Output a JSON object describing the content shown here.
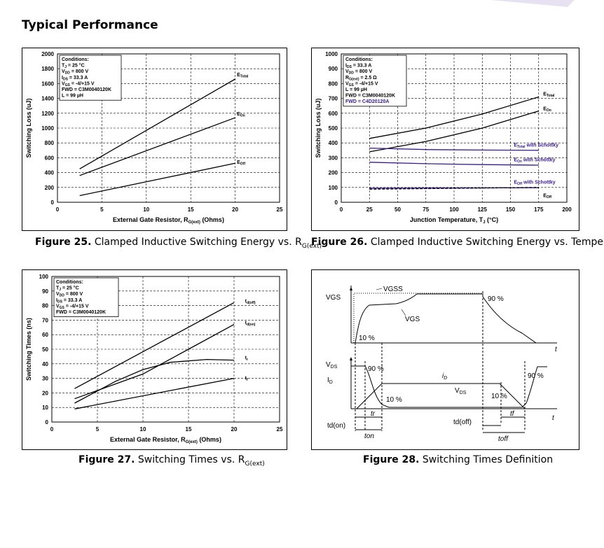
{
  "page": {
    "section_title": "Typical Performance"
  },
  "figures": {
    "f25": {
      "num": "Figure 25.",
      "caption": "Clamped Inductive Switching Energy vs. R",
      "caption_sub": "G(ext)"
    },
    "f26": {
      "num": "Figure 26.",
      "caption": "Clamped Inductive Switching Energy vs. Temperature"
    },
    "f27": {
      "num": "Figure 27.",
      "caption": "Switching Times vs. R",
      "caption_sub": "G(ext)"
    },
    "f28": {
      "num": "Figure 28.",
      "caption": "Switching Times Definition"
    }
  },
  "chart_data": [
    {
      "id": "f25",
      "type": "line",
      "xlabel": "External Gate Resistor, R",
      "xlabel_sub": "G(ext)",
      "xlabel_tail": " (Ohms)",
      "ylabel": "Switching Loss (uJ)",
      "xlim": [
        0,
        25
      ],
      "ylim": [
        0,
        2000
      ],
      "xticks": [
        0,
        5,
        10,
        15,
        20,
        25
      ],
      "yticks": [
        0,
        200,
        400,
        600,
        800,
        1000,
        1200,
        1400,
        1600,
        1800,
        2000
      ],
      "grid": true,
      "conditions": [
        "Conditions:",
        "T_J = 25 °C",
        "V_DD = 800 V",
        "I_DS = 33.3 A",
        "V_GS = -4/+15 V",
        "FWD = C3M0040120K",
        "L = 99 µH"
      ],
      "series": [
        {
          "name": "E_Total",
          "color": "#000000",
          "points": [
            [
              2.5,
              450
            ],
            [
              20,
              1660
            ]
          ]
        },
        {
          "name": "E_On",
          "color": "#000000",
          "points": [
            [
              2.5,
              360
            ],
            [
              20,
              1140
            ]
          ]
        },
        {
          "name": "E_Off",
          "color": "#000000",
          "points": [
            [
              2.5,
              90
            ],
            [
              20,
              525
            ]
          ]
        }
      ]
    },
    {
      "id": "f26",
      "type": "line",
      "xlabel": "Junction Temperature, T",
      "xlabel_sub": "J",
      "xlabel_tail": " (°C)",
      "ylabel": "Switching Loss (uJ)",
      "xlim": [
        0,
        200
      ],
      "ylim": [
        0,
        1000
      ],
      "xticks": [
        0,
        25,
        50,
        75,
        100,
        125,
        150,
        175,
        200
      ],
      "yticks": [
        0,
        100,
        200,
        300,
        400,
        500,
        600,
        700,
        800,
        900,
        1000
      ],
      "grid": true,
      "conditions": [
        "Conditions:",
        "I_DS = 33.3 A",
        "V_DD = 800 V",
        "R_G(ext) = 2.5 Ω",
        "V_GS = -4/+15 V",
        "L = 99 µH",
        "FWD = C3M0040120K",
        "FWD = C4D20120A"
      ],
      "conditions_colors": [
        "#000000",
        "#000000",
        "#000000",
        "#000000",
        "#000000",
        "#000000",
        "#000000",
        "#3a1a8c"
      ],
      "series": [
        {
          "name": "E_Total",
          "color": "#000000",
          "points": [
            [
              25,
              430
            ],
            [
              75,
              500
            ],
            [
              125,
              595
            ],
            [
              175,
              710
            ]
          ]
        },
        {
          "name": "E_On",
          "color": "#000000",
          "points": [
            [
              25,
              340
            ],
            [
              75,
              410
            ],
            [
              125,
              500
            ],
            [
              175,
              615
            ]
          ]
        },
        {
          "name": "E_Total with Schottky",
          "color": "#3a1a8c",
          "points": [
            [
              25,
              365
            ],
            [
              75,
              355
            ],
            [
              125,
              352
            ],
            [
              175,
              350
            ]
          ]
        },
        {
          "name": "E_On with Schottky",
          "color": "#3a1a8c",
          "points": [
            [
              25,
              270
            ],
            [
              75,
              260
            ],
            [
              125,
              254
            ],
            [
              175,
              250
            ]
          ]
        },
        {
          "name": "E_Off with Schottky",
          "color": "#3a1a8c",
          "points": [
            [
              25,
              95
            ],
            [
              175,
              98
            ]
          ]
        },
        {
          "name": "E_Off",
          "color": "#000000",
          "dashed": true,
          "points": [
            [
              25,
              88
            ],
            [
              175,
              100
            ]
          ]
        }
      ]
    },
    {
      "id": "f27",
      "type": "line",
      "xlabel": "External Gate Resistor, R",
      "xlabel_sub": "G(ext)",
      "xlabel_tail": " (Ohms)",
      "ylabel": "Switching Times (ns)",
      "xlim": [
        0,
        25
      ],
      "ylim": [
        0,
        100
      ],
      "xticks": [
        0,
        5,
        10,
        15,
        20,
        25
      ],
      "yticks": [
        0,
        10,
        20,
        30,
        40,
        50,
        60,
        70,
        80,
        90,
        100
      ],
      "grid": true,
      "conditions": [
        "Conditions:",
        "T_J = 25 °C",
        "V_DD = 800 V",
        "I_DS = 33.3 A",
        "V_GS = -4/+15 V",
        "FWD = C3M0040120K"
      ],
      "series": [
        {
          "name": "t_d(off)",
          "color": "#000000",
          "points": [
            [
              2.5,
              23
            ],
            [
              20,
              82
            ]
          ]
        },
        {
          "name": "t_d(on)",
          "color": "#000000",
          "points": [
            [
              2.5,
              16
            ],
            [
              10,
              33
            ],
            [
              15,
              50
            ],
            [
              20,
              67
            ]
          ]
        },
        {
          "name": "t_r",
          "color": "#000000",
          "points": [
            [
              2.5,
              13
            ],
            [
              7,
              28
            ],
            [
              10,
              36
            ],
            [
              13,
              41
            ],
            [
              17,
              43
            ],
            [
              20,
              42.5
            ]
          ]
        },
        {
          "name": "t_f",
          "color": "#000000",
          "points": [
            [
              2.5,
              9
            ],
            [
              20,
              30
            ]
          ]
        }
      ]
    }
  ],
  "f28": {
    "labels": {
      "vgs_axis": "VGS",
      "vgs_top": "VGSS",
      "vgs_curve": "VGS",
      "pct90_top": "90 %",
      "pct10_top": "10 %",
      "vds_axis_v": "V",
      "vds_axis_sub": "DS",
      "id_axis_i": "I",
      "id_axis_sub": "D",
      "pct90_left": "90 %",
      "pct10_mid": "10 %",
      "id_curve_i": "i",
      "id_curve_sub": "D",
      "vds_curve_v": "V",
      "vds_curve_sub": "DS",
      "pct10_right": "10 %",
      "pct90_right": "90 %",
      "t_top": "t",
      "t_bottom": "t",
      "td_on": "td(on)",
      "tr": "tr",
      "ton": "ton",
      "td_off": "td(off)",
      "tf": "tf",
      "toff": "toff"
    }
  }
}
